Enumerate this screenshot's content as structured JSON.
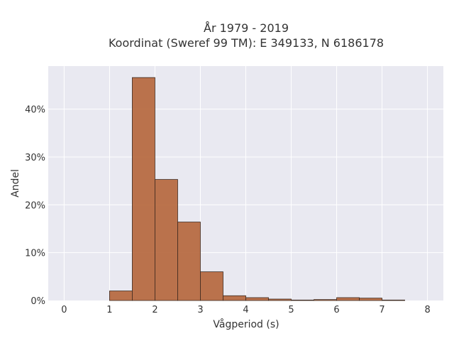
{
  "chart_data": {
    "type": "bar",
    "title_line1": "År 1979 - 2019",
    "title_line2": "Koordinat (Sweref 99 TM): E 349133, N 6186178",
    "xlabel": "Vågperiod (s)",
    "ylabel": "Andel",
    "xlim": [
      -0.35,
      8.35
    ],
    "ylim": [
      0,
      0.49
    ],
    "x_ticks": [
      0,
      1,
      2,
      3,
      4,
      5,
      6,
      7,
      8
    ],
    "x_tick_labels": [
      "0",
      "1",
      "2",
      "3",
      "4",
      "5",
      "6",
      "7",
      "8"
    ],
    "y_ticks": [
      0,
      0.1,
      0.2,
      0.3,
      0.4
    ],
    "y_tick_labels": [
      "0%",
      "10%",
      "20%",
      "30%",
      "40%"
    ],
    "grid": true,
    "background_color": "#e9e9f1",
    "bar_color": "#b5653a",
    "bin_width": 0.5,
    "bins": [
      {
        "start": 1.0,
        "value": 0.02
      },
      {
        "start": 1.5,
        "value": 0.466
      },
      {
        "start": 2.0,
        "value": 0.253
      },
      {
        "start": 2.5,
        "value": 0.164
      },
      {
        "start": 3.0,
        "value": 0.06
      },
      {
        "start": 3.5,
        "value": 0.01
      },
      {
        "start": 4.0,
        "value": 0.006
      },
      {
        "start": 4.5,
        "value": 0.003
      },
      {
        "start": 5.0,
        "value": 0.001
      },
      {
        "start": 5.5,
        "value": 0.002
      },
      {
        "start": 6.0,
        "value": 0.006
      },
      {
        "start": 6.5,
        "value": 0.005
      },
      {
        "start": 7.0,
        "value": 0.001
      }
    ]
  }
}
